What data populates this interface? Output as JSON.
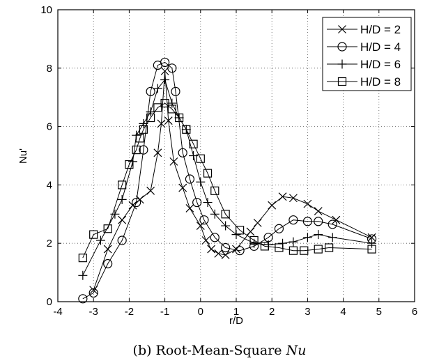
{
  "chart_data": {
    "type": "line",
    "xlabel": "r/D",
    "ylabel": "Nu'",
    "xlim": [
      -4,
      6
    ],
    "ylim": [
      0,
      10
    ],
    "xticks": [
      -4,
      -3,
      -2,
      -1,
      0,
      1,
      2,
      3,
      4,
      5,
      6
    ],
    "yticks": [
      0,
      2,
      4,
      6,
      8,
      10
    ],
    "grid": true,
    "legend_position": "top-right",
    "series": [
      {
        "name": "H/D = 2",
        "marker": "x",
        "points": [
          [
            -3.0,
            0.4
          ],
          [
            -2.6,
            1.8
          ],
          [
            -2.2,
            2.8
          ],
          [
            -1.9,
            3.3
          ],
          [
            -1.7,
            3.5
          ],
          [
            -1.4,
            3.8
          ],
          [
            -1.2,
            5.1
          ],
          [
            -1.1,
            6.1
          ],
          [
            -1.0,
            7.9
          ],
          [
            -0.9,
            6.2
          ],
          [
            -0.75,
            4.8
          ],
          [
            -0.5,
            3.9
          ],
          [
            -0.3,
            3.2
          ],
          [
            0.0,
            2.6
          ],
          [
            0.15,
            2.1
          ],
          [
            0.3,
            1.8
          ],
          [
            0.5,
            1.65
          ],
          [
            0.7,
            1.6
          ],
          [
            1.0,
            1.8
          ],
          [
            1.4,
            2.4
          ],
          [
            1.6,
            2.7
          ],
          [
            2.0,
            3.3
          ],
          [
            2.3,
            3.6
          ],
          [
            2.6,
            3.55
          ],
          [
            3.0,
            3.35
          ],
          [
            3.3,
            3.1
          ],
          [
            3.8,
            2.8
          ],
          [
            4.8,
            2.2
          ]
        ]
      },
      {
        "name": "H/D = 4",
        "marker": "o",
        "points": [
          [
            -3.3,
            0.1
          ],
          [
            -3.0,
            0.3
          ],
          [
            -2.6,
            1.3
          ],
          [
            -2.2,
            2.1
          ],
          [
            -1.8,
            3.4
          ],
          [
            -1.6,
            5.2
          ],
          [
            -1.4,
            7.2
          ],
          [
            -1.2,
            8.1
          ],
          [
            -1.0,
            8.2
          ],
          [
            -0.8,
            8.0
          ],
          [
            -0.7,
            7.2
          ],
          [
            -0.5,
            5.1
          ],
          [
            -0.3,
            4.2
          ],
          [
            -0.1,
            3.4
          ],
          [
            0.1,
            2.8
          ],
          [
            0.4,
            2.2
          ],
          [
            0.7,
            1.85
          ],
          [
            1.1,
            1.75
          ],
          [
            1.5,
            1.9
          ],
          [
            1.9,
            2.2
          ],
          [
            2.2,
            2.5
          ],
          [
            2.6,
            2.8
          ],
          [
            3.0,
            2.75
          ],
          [
            3.3,
            2.75
          ],
          [
            3.7,
            2.65
          ],
          [
            4.8,
            2.15
          ]
        ]
      },
      {
        "name": "H/D = 6",
        "marker": "+",
        "points": [
          [
            -3.3,
            0.9
          ],
          [
            -2.8,
            2.1
          ],
          [
            -2.4,
            3.0
          ],
          [
            -2.2,
            3.5
          ],
          [
            -1.9,
            4.8
          ],
          [
            -1.8,
            5.7
          ],
          [
            -1.6,
            6.1
          ],
          [
            -1.4,
            6.5
          ],
          [
            -1.2,
            7.3
          ],
          [
            -1.0,
            7.6
          ],
          [
            -0.8,
            6.8
          ],
          [
            -0.6,
            6.3
          ],
          [
            -0.4,
            5.9
          ],
          [
            -0.2,
            5.0
          ],
          [
            0.0,
            4.1
          ],
          [
            0.2,
            3.4
          ],
          [
            0.4,
            3.0
          ],
          [
            0.7,
            2.6
          ],
          [
            1.0,
            2.3
          ],
          [
            1.5,
            2.0
          ],
          [
            1.9,
            1.95
          ],
          [
            2.3,
            2.0
          ],
          [
            2.6,
            2.05
          ],
          [
            3.0,
            2.2
          ],
          [
            3.3,
            2.3
          ],
          [
            3.7,
            2.2
          ],
          [
            4.8,
            2.0
          ]
        ]
      },
      {
        "name": "H/D = 8",
        "marker": "s",
        "points": [
          [
            -3.3,
            1.5
          ],
          [
            -3.0,
            2.3
          ],
          [
            -2.6,
            2.5
          ],
          [
            -2.2,
            4.0
          ],
          [
            -2.0,
            4.7
          ],
          [
            -1.8,
            5.2
          ],
          [
            -1.7,
            5.6
          ],
          [
            -1.6,
            5.9
          ],
          [
            -1.4,
            6.3
          ],
          [
            -1.2,
            6.65
          ],
          [
            -1.0,
            6.8
          ],
          [
            -0.8,
            6.6
          ],
          [
            -0.6,
            6.3
          ],
          [
            -0.4,
            5.9
          ],
          [
            -0.2,
            5.4
          ],
          [
            0.0,
            4.9
          ],
          [
            0.2,
            4.4
          ],
          [
            0.4,
            3.8
          ],
          [
            0.7,
            3.0
          ],
          [
            1.1,
            2.45
          ],
          [
            1.5,
            2.1
          ],
          [
            1.8,
            1.9
          ],
          [
            2.2,
            1.85
          ],
          [
            2.6,
            1.75
          ],
          [
            2.9,
            1.75
          ],
          [
            3.3,
            1.8
          ],
          [
            3.6,
            1.85
          ],
          [
            4.8,
            1.8
          ]
        ]
      }
    ]
  },
  "caption": {
    "prefix": "(b) Root-Mean-Square ",
    "math": "Nu"
  }
}
